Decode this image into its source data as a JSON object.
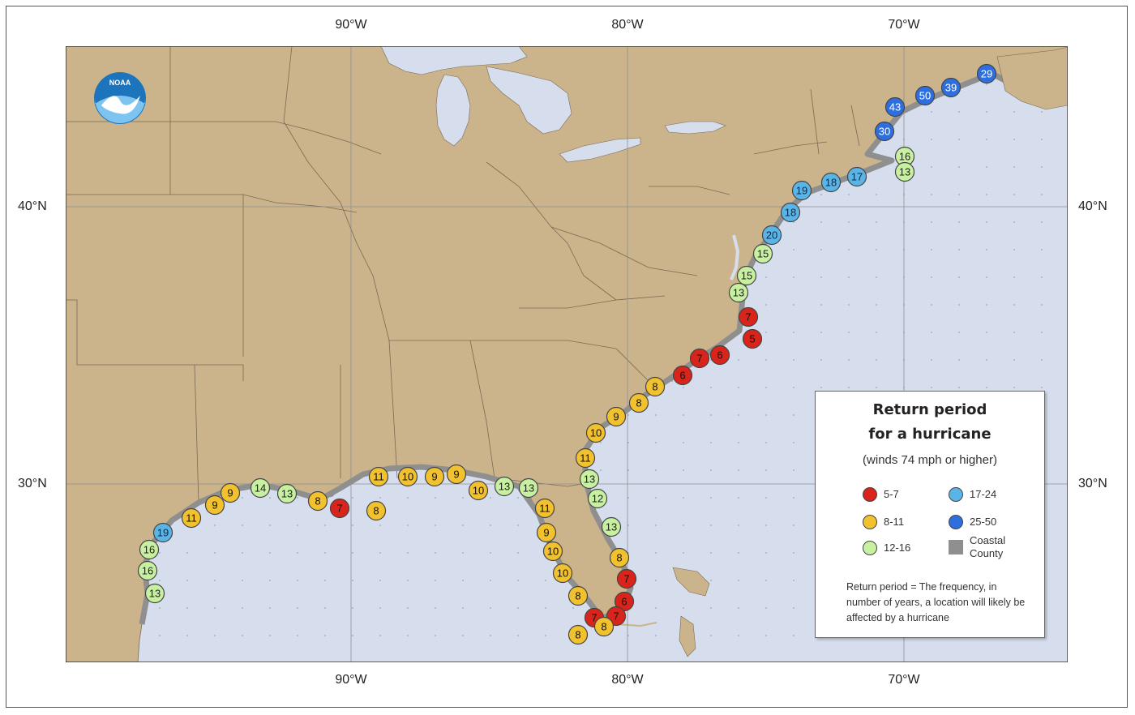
{
  "longitude_labels": [
    "90°W",
    "80°W",
    "70°W"
  ],
  "latitude_labels": [
    "40°N",
    "30°N"
  ],
  "logo_text": "NOAA",
  "legend": {
    "title_line1": "Return period",
    "title_line2": "for a hurricane",
    "subtitle": "(winds 74 mph or higher)",
    "items": [
      {
        "label": "5-7",
        "color": "#d9241c"
      },
      {
        "label": "17-24",
        "color": "#5ab4e6"
      },
      {
        "label": "8-11",
        "color": "#f2c12e"
      },
      {
        "label": "25-50",
        "color": "#2e6fe0"
      },
      {
        "label": "12-16",
        "color": "#c7f0a0"
      },
      {
        "label": "Coastal County",
        "color": "#8f8f8f"
      }
    ],
    "note": "Return period = The frequency, in number of years, a location will likely be affected by a hurricane"
  },
  "colors": {
    "land": "#cbb48c",
    "water": "#d6deee",
    "coastal_county": "#8f8f8f",
    "red": "#d9241c",
    "yellow": "#f2c12e",
    "green": "#c7f0a0",
    "light_blue": "#5ab4e6",
    "blue": "#2e6fe0"
  },
  "return_periods": [
    {
      "value": 29,
      "cls": "25-50"
    },
    {
      "value": 39,
      "cls": "25-50"
    },
    {
      "value": 50,
      "cls": "25-50"
    },
    {
      "value": 43,
      "cls": "25-50"
    },
    {
      "value": 30,
      "cls": "25-50"
    },
    {
      "value": 16,
      "cls": "12-16"
    },
    {
      "value": 13,
      "cls": "12-16"
    },
    {
      "value": 17,
      "cls": "17-24"
    },
    {
      "value": 18,
      "cls": "17-24"
    },
    {
      "value": 19,
      "cls": "17-24"
    },
    {
      "value": 18,
      "cls": "17-24"
    },
    {
      "value": 20,
      "cls": "17-24"
    },
    {
      "value": 15,
      "cls": "12-16"
    },
    {
      "value": 15,
      "cls": "12-16"
    },
    {
      "value": 13,
      "cls": "12-16"
    },
    {
      "value": 7,
      "cls": "5-7"
    },
    {
      "value": 5,
      "cls": "5-7"
    },
    {
      "value": 6,
      "cls": "5-7"
    },
    {
      "value": 7,
      "cls": "5-7"
    },
    {
      "value": 6,
      "cls": "5-7"
    },
    {
      "value": 8,
      "cls": "8-11"
    },
    {
      "value": 8,
      "cls": "8-11"
    },
    {
      "value": 9,
      "cls": "8-11"
    },
    {
      "value": 10,
      "cls": "8-11"
    },
    {
      "value": 11,
      "cls": "8-11"
    },
    {
      "value": 13,
      "cls": "12-16"
    },
    {
      "value": 12,
      "cls": "12-16"
    },
    {
      "value": 13,
      "cls": "12-16"
    },
    {
      "value": 8,
      "cls": "8-11"
    },
    {
      "value": 7,
      "cls": "5-7"
    },
    {
      "value": 6,
      "cls": "5-7"
    },
    {
      "value": 7,
      "cls": "5-7"
    },
    {
      "value": 7,
      "cls": "5-7"
    },
    {
      "value": 8,
      "cls": "8-11"
    },
    {
      "value": 8,
      "cls": "8-11"
    },
    {
      "value": 8,
      "cls": "8-11"
    },
    {
      "value": 10,
      "cls": "8-11"
    },
    {
      "value": 10,
      "cls": "8-11"
    },
    {
      "value": 9,
      "cls": "8-11"
    },
    {
      "value": 11,
      "cls": "8-11"
    },
    {
      "value": 13,
      "cls": "12-16"
    },
    {
      "value": 13,
      "cls": "12-16"
    },
    {
      "value": 10,
      "cls": "8-11"
    },
    {
      "value": 9,
      "cls": "8-11"
    },
    {
      "value": 9,
      "cls": "8-11"
    },
    {
      "value": 10,
      "cls": "8-11"
    },
    {
      "value": 11,
      "cls": "8-11"
    },
    {
      "value": 8,
      "cls": "8-11"
    },
    {
      "value": 7,
      "cls": "5-7"
    },
    {
      "value": 8,
      "cls": "8-11"
    },
    {
      "value": 13,
      "cls": "12-16"
    },
    {
      "value": 14,
      "cls": "12-16"
    },
    {
      "value": 9,
      "cls": "8-11"
    },
    {
      "value": 9,
      "cls": "8-11"
    },
    {
      "value": 11,
      "cls": "8-11"
    },
    {
      "value": 19,
      "cls": "17-24"
    },
    {
      "value": 16,
      "cls": "12-16"
    },
    {
      "value": 16,
      "cls": "12-16"
    },
    {
      "value": 13,
      "cls": "12-16"
    }
  ]
}
